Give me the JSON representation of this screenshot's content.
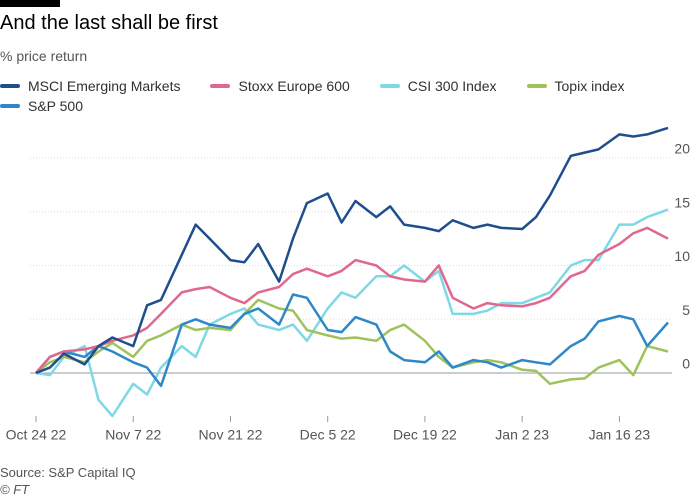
{
  "chart_data": {
    "type": "line",
    "title": "And the last shall be first",
    "subtitle": "% price return",
    "source": "Source: S&P Capital IQ",
    "credit": "© FT",
    "x": [
      "2022-10-24",
      "2022-10-26",
      "2022-10-28",
      "2022-10-31",
      "2022-11-02",
      "2022-11-04",
      "2022-11-07",
      "2022-11-09",
      "2022-11-11",
      "2022-11-14",
      "2022-11-16",
      "2022-11-18",
      "2022-11-21",
      "2022-11-23",
      "2022-11-25",
      "2022-11-28",
      "2022-11-30",
      "2022-12-02",
      "2022-12-05",
      "2022-12-07",
      "2022-12-09",
      "2022-12-12",
      "2022-12-14",
      "2022-12-16",
      "2022-12-19",
      "2022-12-21",
      "2022-12-23",
      "2022-12-26",
      "2022-12-28",
      "2022-12-30",
      "2023-01-02",
      "2023-01-04",
      "2023-01-06",
      "2023-01-09",
      "2023-01-11",
      "2023-01-13",
      "2023-01-16",
      "2023-01-18",
      "2023-01-20",
      "2023-01-23"
    ],
    "series": [
      {
        "name": "MSCI Emerging Markets",
        "color": "#1f4e8c",
        "values": [
          0,
          0.5,
          1.8,
          0.8,
          2.5,
          3.3,
          2.5,
          6.3,
          6.8,
          11,
          13.8,
          12.5,
          10.5,
          10.3,
          12,
          8.5,
          12.5,
          15.8,
          16.7,
          14,
          16,
          14.5,
          15.5,
          13.8,
          13.5,
          13.2,
          14.2,
          13.5,
          13.8,
          13.5,
          13.4,
          14.5,
          16.5,
          20.2,
          20.5,
          20.8,
          22.2,
          22,
          22.2,
          22.8
        ]
      },
      {
        "name": "Stoxx Europe 600",
        "color": "#e0688f",
        "values": [
          0,
          1.5,
          2,
          2.2,
          2.5,
          3,
          3.5,
          4.2,
          5.5,
          7.5,
          7.8,
          8,
          7,
          6.5,
          7.5,
          8,
          9.2,
          9.7,
          9,
          9.5,
          10.5,
          10,
          9,
          8.7,
          8.5,
          10,
          7,
          6,
          6.5,
          6.3,
          6.2,
          6.5,
          7,
          9,
          9.5,
          11,
          12,
          13,
          13.5,
          12.5
        ]
      },
      {
        "name": "CSI 300 Index",
        "color": "#7fd8e6",
        "values": [
          0,
          -0.2,
          1.5,
          2.5,
          -2.5,
          -4,
          -1,
          -2,
          0.5,
          2.5,
          1.5,
          4.5,
          5.5,
          6,
          4.5,
          4,
          4.5,
          3,
          6,
          7.5,
          7,
          9,
          9,
          10,
          8.5,
          9.5,
          5.5,
          5.5,
          5.8,
          6.5,
          6.5,
          7,
          7.5,
          10,
          10.5,
          10.5,
          13.8,
          13.8,
          14.5,
          15.2
        ]
      },
      {
        "name": "Topix index",
        "color": "#9fc25b",
        "values": [
          0,
          1,
          1.5,
          1,
          2,
          2.8,
          1.5,
          3,
          3.5,
          4.5,
          4,
          4.2,
          4,
          5.5,
          6.8,
          6,
          5.8,
          4,
          3.5,
          3.2,
          3.3,
          3,
          4,
          4.5,
          3,
          1.5,
          0.5,
          1,
          1.2,
          1,
          0.3,
          0.2,
          -1,
          -0.6,
          -0.5,
          0.5,
          1.2,
          -0.2,
          2.5,
          2
        ]
      },
      {
        "name": "S&P 500",
        "color": "#2e88c8",
        "values": [
          0,
          1.5,
          2,
          1.5,
          2.5,
          2,
          1,
          0.5,
          -1.2,
          4.5,
          5,
          4.5,
          4.2,
          5.5,
          6,
          4.5,
          7.3,
          7,
          4,
          3.8,
          5.2,
          4.5,
          2,
          1.2,
          1,
          2,
          0.5,
          1.2,
          1,
          0.5,
          1.2,
          1,
          0.8,
          2.5,
          3.2,
          4.8,
          5.3,
          5,
          2.5,
          4.7
        ]
      }
    ],
    "xlim": [
      "2022-10-24",
      "2023-01-23"
    ],
    "xticks": [
      {
        "value": "2022-10-24",
        "label": "Oct 24 22"
      },
      {
        "value": "2022-11-07",
        "label": "Nov 7 22"
      },
      {
        "value": "2022-11-21",
        "label": "Nov 21 22"
      },
      {
        "value": "2022-12-05",
        "label": "Dec 5 22"
      },
      {
        "value": "2022-12-19",
        "label": "Dec 19 22"
      },
      {
        "value": "2023-01-02",
        "label": "Jan 2 23"
      },
      {
        "value": "2023-01-16",
        "label": "Jan 16 23"
      }
    ],
    "ylim": [
      -4,
      24
    ],
    "yticks": [
      0,
      5,
      10,
      15,
      20
    ],
    "grid": true
  }
}
